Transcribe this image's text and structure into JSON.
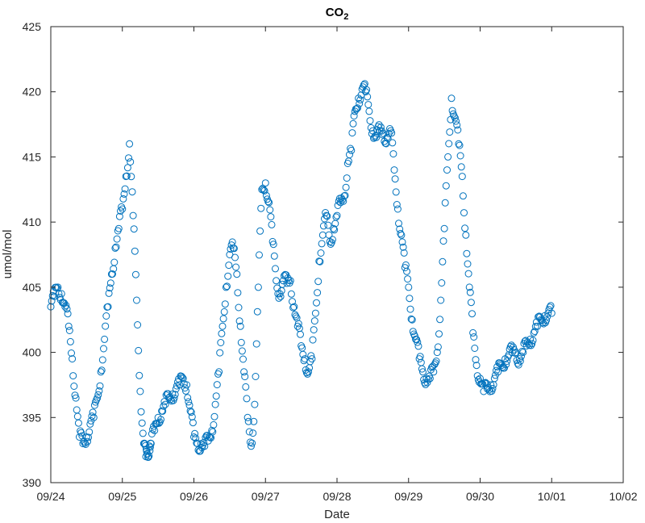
{
  "chart_data": {
    "type": "scatter",
    "title_main": "CO",
    "title_sub": "2",
    "xlabel": "Date",
    "ylabel": "umol/mol",
    "xlim": [
      "09/24",
      "10/02"
    ],
    "ylim": [
      390,
      425
    ],
    "x_ticks": [
      "09/24",
      "09/25",
      "09/26",
      "09/27",
      "09/28",
      "09/29",
      "09/30",
      "10/01",
      "10/02"
    ],
    "y_ticks": [
      390,
      395,
      400,
      405,
      410,
      415,
      420,
      425
    ],
    "grid": false,
    "marker": "circle-open",
    "color": "#0072BD",
    "series": [
      {
        "x": [
          "09/24 00:00",
          "09/24 01:12",
          "09/24 02:24",
          "09/24 03:36",
          "09/24 04:48",
          "09/24 06:00",
          "09/24 07:12",
          "09/24 08:24",
          "09/24 09:36",
          "09/24 10:48",
          "09/24 12:00",
          "09/24 13:12",
          "09/24 14:24",
          "09/24 15:36",
          "09/24 16:48",
          "09/24 18:00",
          "09/24 19:12",
          "09/24 20:24",
          "09/24 21:36",
          "09/24 22:48",
          "09/25 00:00",
          "09/25 01:12",
          "09/25 02:24",
          "09/25 03:36",
          "09/25 04:48",
          "09/25 06:00",
          "09/25 07:12",
          "09/25 07:55",
          "09/25 08:24",
          "09/25 09:07",
          "09/25 09:36",
          "09/25 10:48",
          "09/25 12:00",
          "09/25 13:12",
          "09/25 14:24",
          "09/25 15:36",
          "09/25 16:48",
          "09/25 18:00",
          "09/25 19:12",
          "09/25 20:24",
          "09/25 21:36",
          "09/25 22:48",
          "09/26 00:00",
          "09/26 01:12",
          "09/26 02:24",
          "09/26 03:36",
          "09/26 04:48",
          "09/26 06:00",
          "09/26 07:12",
          "09/26 08:24",
          "09/26 09:36",
          "09/26 10:48",
          "09/26 12:00",
          "09/26 13:12",
          "09/26 14:24",
          "09/26 15:36",
          "09/26 16:48",
          "09/26 18:00",
          "09/26 19:12",
          "09/26 20:24",
          "09/26 21:36",
          "09/26 22:48",
          "09/27 00:00",
          "09/27 01:12",
          "09/27 02:24",
          "09/27 03:36",
          "09/27 04:48",
          "09/27 06:00",
          "09/27 07:12",
          "09/27 08:24",
          "09/27 09:36",
          "09/27 10:48",
          "09/27 12:00",
          "09/27 13:12",
          "09/27 14:24",
          "09/27 15:36",
          "09/27 16:48",
          "09/27 18:00",
          "09/27 19:12",
          "09/27 20:24",
          "09/27 21:36",
          "09/27 22:48",
          "09/28 00:00",
          "09/28 01:12",
          "09/28 02:24",
          "09/28 03:36",
          "09/28 04:48",
          "09/28 06:00",
          "09/28 07:12",
          "09/28 08:24",
          "09/28 09:36",
          "09/28 10:48",
          "09/28 12:00",
          "09/28 13:12",
          "09/28 14:24",
          "09/28 15:36",
          "09/28 16:48",
          "09/28 18:00",
          "09/28 19:12",
          "09/28 20:24",
          "09/28 21:36",
          "09/28 22:48",
          "09/29 00:00",
          "09/29 01:12",
          "09/29 02:24",
          "09/29 03:36",
          "09/29 04:48",
          "09/29 06:00",
          "09/29 07:12",
          "09/29 08:24",
          "09/29 09:36",
          "09/29 10:48",
          "09/29 12:00",
          "09/29 13:12",
          "09/29 14:24",
          "09/29 15:36",
          "09/29 16:48",
          "09/29 18:00",
          "09/29 19:12",
          "09/29 20:24",
          "09/29 21:36",
          "09/29 22:48",
          "09/30 00:00",
          "09/30 01:12",
          "09/30 02:24",
          "09/30 03:36",
          "09/30 04:48",
          "09/30 06:00",
          "09/30 07:12",
          "09/30 08:24",
          "09/30 09:36",
          "09/30 10:48",
          "09/30 12:00",
          "09/30 13:12",
          "09/30 14:24",
          "09/30 15:36",
          "09/30 16:48",
          "09/30 18:00",
          "09/30 19:12",
          "09/30 20:24",
          "09/30 21:36",
          "09/30 22:48",
          "10/01 00:00"
        ],
        "y": [
          403.5,
          404.3,
          405.0,
          404.5,
          403.5,
          402.0,
          399.5,
          396.5,
          393.5,
          393.0,
          393.5,
          394.5,
          395.0,
          396.5,
          398.5,
          401.0,
          403.5,
          406.0,
          408.0,
          409.5,
          411.0,
          413.5,
          416.0,
          410.5,
          404.0,
          397.0,
          393.0,
          392.0,
          392.2,
          392.8,
          393.0,
          394.0,
          395.0,
          395.5,
          396.0,
          396.5,
          396.8,
          397.2,
          397.5,
          398.0,
          397.5,
          395.5,
          393.5,
          393.0,
          393.0,
          392.8,
          393.2,
          394.0,
          396.0,
          398.5,
          402.0,
          405.0,
          407.5,
          408.0,
          406.0,
          402.0,
          398.5,
          395.0,
          392.8,
          396.0,
          405.0,
          412.5,
          413.0,
          411.5,
          408.5,
          405.5,
          404.5,
          405.5,
          405.3,
          405.5,
          403.5,
          402.0,
          400.5,
          399.5,
          398.5,
          399.5,
          403.0,
          407.0,
          409.0,
          410.5,
          408.5,
          409.5,
          410.5,
          411.5,
          412.0,
          414.5,
          415.5,
          418.5,
          419.5,
          420.2,
          420.0,
          418.5,
          417.0,
          416.5,
          417.0,
          416.8,
          416.5,
          417.0,
          414.0,
          411.0,
          409.0,
          406.5,
          405.0,
          402.5,
          401.0,
          399.5,
          398.5,
          398.0,
          398.0,
          398.5,
          400.0,
          404.0,
          409.5,
          415.0,
          419.5,
          418.0,
          416.0,
          413.5,
          409.0,
          405.0,
          401.5,
          399.0,
          398.0,
          397.0,
          397.2,
          397.5,
          398.0,
          398.5,
          399.0,
          399.5,
          399.8,
          400.0,
          400.0,
          399.5,
          400.0,
          400.5,
          401.0,
          401.5,
          402.0,
          402.5,
          402.8,
          403.0,
          403.0
        ]
      }
    ]
  }
}
